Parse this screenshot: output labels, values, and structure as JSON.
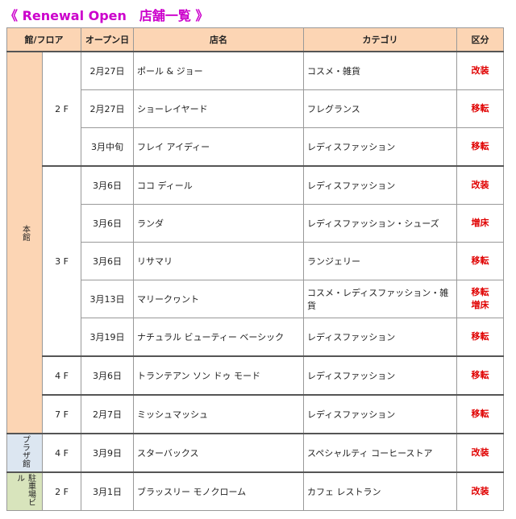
{
  "header": {
    "title": "《 Renewal Open　店舗一覧 》"
  },
  "table": {
    "columns": [
      "館/フロア",
      "オープン日",
      "店名",
      "カテゴリ",
      "区分"
    ],
    "buildings": [
      {
        "name": "本館",
        "color": "#fcd5b4",
        "floors": [
          {
            "floor": "2 F",
            "rows": [
              {
                "date": "2月27日",
                "store": "ポール & ジョー",
                "category": "コスメ・雑貨",
                "kubun": [
                  "改装"
                ]
              },
              {
                "date": "2月27日",
                "store": "ショーレイヤード",
                "category": "フレグランス",
                "kubun": [
                  "移転"
                ]
              },
              {
                "date": "3月中旬",
                "store": "フレイ アイディー",
                "category": "レディスファッション",
                "kubun": [
                  "移転"
                ]
              }
            ]
          },
          {
            "floor": "3 F",
            "rows": [
              {
                "date": "3月6日",
                "store": "ココ ディール",
                "category": "レディスファッション",
                "kubun": [
                  "改装"
                ]
              },
              {
                "date": "3月6日",
                "store": "ランダ",
                "category": "レディスファッション・シューズ",
                "kubun": [
                  "増床"
                ]
              },
              {
                "date": "3月6日",
                "store": "リサマリ",
                "category": "ランジェリー",
                "kubun": [
                  "移転"
                ]
              },
              {
                "date": "3月13日",
                "store": "マリークヮント",
                "category": "コスメ・レディスファッション・雑貨",
                "kubun": [
                  "移転",
                  "増床"
                ]
              },
              {
                "date": "3月19日",
                "store": "ナチュラル ビューティー ベーシック",
                "category": "レディスファッション",
                "kubun": [
                  "移転"
                ]
              }
            ]
          },
          {
            "floor": "4 F",
            "rows": [
              {
                "date": "3月6日",
                "store": "トランテアン ソン ドゥ モード",
                "category": "レディスファッション",
                "kubun": [
                  "移転"
                ]
              }
            ]
          },
          {
            "floor": "7 F",
            "rows": [
              {
                "date": "2月7日",
                "store": "ミッシュマッシュ",
                "category": "レディスファッション",
                "kubun": [
                  "移転"
                ]
              }
            ]
          }
        ]
      },
      {
        "name": "プラザ館",
        "color": "#dce6f1",
        "floors": [
          {
            "floor": "4 F",
            "rows": [
              {
                "date": "3月9日",
                "store": "スターバックス",
                "category": "スペシャルティ コーヒーストア",
                "kubun": [
                  "改装"
                ]
              }
            ]
          }
        ]
      },
      {
        "name": "駐車場ビル",
        "color": "#d8e4bc",
        "floors": [
          {
            "floor": "2 F",
            "rows": [
              {
                "date": "3月1日",
                "store": "ブラッスリー モノクローム",
                "category": "カフェ レストラン",
                "kubun": [
                  "改装"
                ]
              }
            ]
          }
        ]
      }
    ]
  }
}
